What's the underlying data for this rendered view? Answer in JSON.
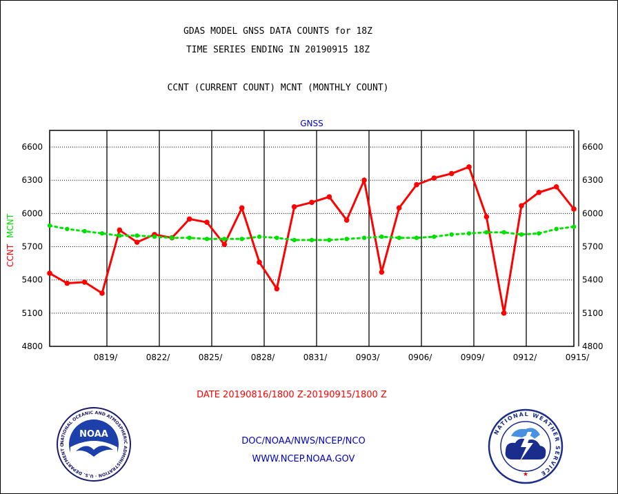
{
  "header": {
    "title_line1": "GDAS MODEL GNSS DATA COUNTS for 18Z",
    "title_line2": "TIME SERIES ENDING IN 20190915 18Z",
    "legend_line": "CCNT (CURRENT COUNT) MCNT (MONTHLY COUNT)"
  },
  "footer": {
    "date_range": "DATE 20190816/1800 Z-20190915/1800 Z",
    "agency_path": "DOC/NOAA/NWS/NCEP/NCO",
    "website": "WWW.NCEP.NOAA.GOV"
  },
  "logos": {
    "noaa": {
      "center_text": "NOAA",
      "ring_text": "NATIONAL OCEANIC AND ATMOSPHERIC ADMINISTRATION · U.S. DEPARTMENT OF COMMERCE"
    },
    "nws": {
      "ring_text": "NATIONAL WEATHER SERVICE"
    }
  },
  "colors": {
    "ccnt": "#ff0000",
    "mcnt": "#00e000",
    "footer_blue": "#0000cc",
    "date_red": "#ff0000"
  },
  "chart_data": {
    "type": "line",
    "title": "GNSS",
    "ylabel_left": [
      "CCNT",
      "MCNT"
    ],
    "ylim": [
      4800,
      6750
    ],
    "yticks": [
      4800,
      5100,
      5400,
      5700,
      6000,
      6300,
      6600
    ],
    "grid": true,
    "x_tick_labels": [
      "0819/",
      "0822/",
      "0825/",
      "0828/",
      "0831/",
      "0903/",
      "0906/",
      "0909/",
      "0912/",
      "0915/"
    ],
    "x_tick_dates": [
      "2019-08-19",
      "2019-08-22",
      "2019-08-25",
      "2019-08-28",
      "2019-08-31",
      "2019-09-03",
      "2019-09-06",
      "2019-09-09",
      "2019-09-12",
      "2019-09-15"
    ],
    "x_start": "2019-08-16",
    "x_end": "2019-09-15",
    "series": [
      {
        "name": "CCNT",
        "color": "#ff0000",
        "x": [
          "2019-08-16",
          "2019-08-17",
          "2019-08-18",
          "2019-08-19",
          "2019-08-20",
          "2019-08-21",
          "2019-08-22",
          "2019-08-23",
          "2019-08-24",
          "2019-08-25",
          "2019-08-26",
          "2019-08-27",
          "2019-08-28",
          "2019-08-29",
          "2019-08-30",
          "2019-08-31",
          "2019-09-01",
          "2019-09-02",
          "2019-09-03",
          "2019-09-04",
          "2019-09-05",
          "2019-09-06",
          "2019-09-07",
          "2019-09-08",
          "2019-09-09",
          "2019-09-10",
          "2019-09-11",
          "2019-09-12",
          "2019-09-13",
          "2019-09-14",
          "2019-09-15"
        ],
        "values": [
          5460,
          5370,
          5380,
          5280,
          5850,
          5740,
          5810,
          5780,
          5950,
          5920,
          5720,
          6050,
          5560,
          5320,
          6060,
          6100,
          6150,
          5940,
          6300,
          5470,
          6050,
          6260,
          6320,
          6360,
          6420,
          5970,
          5100,
          6070,
          6190,
          6240,
          6040
        ]
      },
      {
        "name": "MCNT",
        "color": "#00e000",
        "x": [
          "2019-08-16",
          "2019-08-17",
          "2019-08-18",
          "2019-08-19",
          "2019-08-20",
          "2019-08-21",
          "2019-08-22",
          "2019-08-23",
          "2019-08-24",
          "2019-08-25",
          "2019-08-26",
          "2019-08-27",
          "2019-08-28",
          "2019-08-29",
          "2019-08-30",
          "2019-08-31",
          "2019-09-01",
          "2019-09-02",
          "2019-09-03",
          "2019-09-04",
          "2019-09-05",
          "2019-09-06",
          "2019-09-07",
          "2019-09-08",
          "2019-09-09",
          "2019-09-10",
          "2019-09-11",
          "2019-09-12",
          "2019-09-13",
          "2019-09-14",
          "2019-09-15"
        ],
        "values": [
          5890,
          5860,
          5840,
          5820,
          5800,
          5800,
          5790,
          5780,
          5780,
          5770,
          5770,
          5770,
          5790,
          5780,
          5760,
          5760,
          5760,
          5770,
          5780,
          5790,
          5780,
          5780,
          5790,
          5810,
          5820,
          5830,
          5830,
          5810,
          5820,
          5860,
          5880
        ]
      }
    ]
  }
}
